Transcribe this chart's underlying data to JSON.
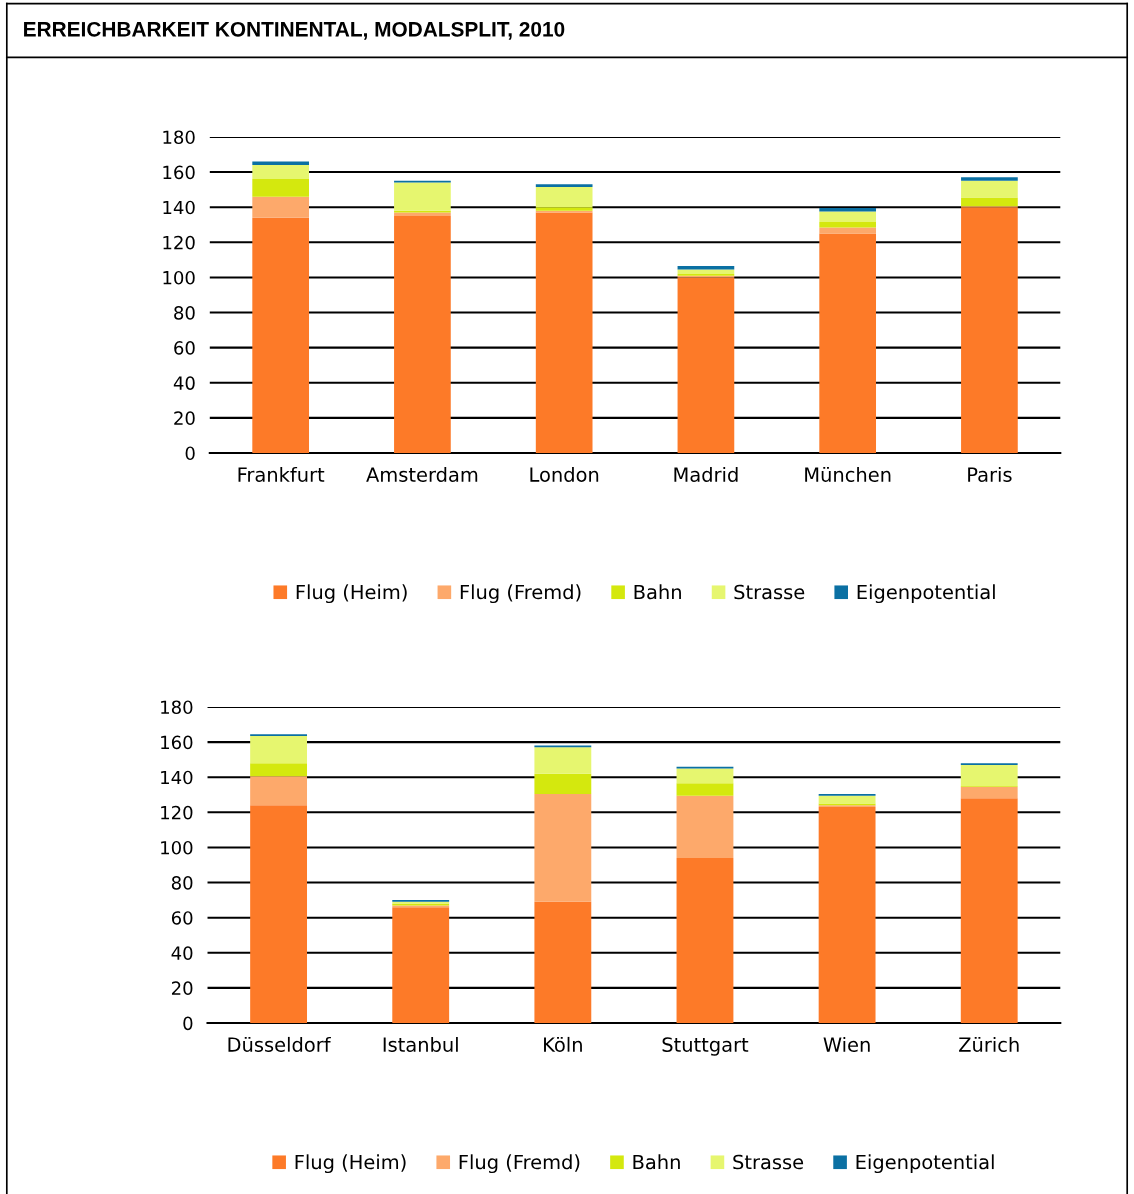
{
  "chart_data": [
    {
      "type": "bar",
      "title": "ERREICHBARKEIT KONTINENTAL, MODALSPLIT, 2010",
      "stacked": true,
      "categories": [
        "Frankfurt",
        "Amsterdam",
        "London",
        "Madrid",
        "München",
        "Paris"
      ],
      "series": [
        {
          "name": "Flug (Heim)",
          "color": "#fd7a28",
          "values": [
            134,
            135,
            137,
            100,
            125,
            140
          ]
        },
        {
          "name": "Flug (Fremd)",
          "color": "#fda96b",
          "values": [
            12,
            2,
            1,
            1,
            3.5,
            0.5
          ]
        },
        {
          "name": "Bahn",
          "color": "#d4e80e",
          "values": [
            10,
            1,
            2,
            1,
            3,
            5
          ]
        },
        {
          "name": "Strasse",
          "color": "#e6f66f",
          "values": [
            8,
            16,
            11.5,
            2.5,
            6,
            9.5
          ]
        },
        {
          "name": "Eigenpotential",
          "color": "#0b70a3",
          "values": [
            2,
            1,
            1.5,
            2,
            2,
            2
          ]
        }
      ],
      "ylim": [
        0,
        180
      ],
      "yticks": [
        0,
        20,
        40,
        60,
        80,
        100,
        120,
        140,
        160,
        180
      ],
      "grid": "y",
      "legend": "bottom"
    },
    {
      "type": "bar",
      "stacked": true,
      "categories": [
        "Düsseldorf",
        "Istanbul",
        "Köln",
        "Stuttgart",
        "Wien",
        "Zürich"
      ],
      "series": [
        {
          "name": "Flug (Heim)",
          "color": "#fd7a28",
          "values": [
            124,
            66,
            69,
            94,
            123,
            128
          ]
        },
        {
          "name": "Flug (Fremd)",
          "color": "#fda96b",
          "values": [
            16.5,
            1,
            61.5,
            35.5,
            1,
            6.5
          ]
        },
        {
          "name": "Bahn",
          "color": "#d4e80e",
          "values": [
            7.5,
            1,
            11.5,
            7,
            1,
            0.5
          ]
        },
        {
          "name": "Strasse",
          "color": "#e6f66f",
          "values": [
            15.5,
            1,
            15,
            8.5,
            4.5,
            12
          ]
        },
        {
          "name": "Eigenpotential",
          "color": "#0b70a3",
          "values": [
            1,
            1,
            1,
            1,
            1,
            1
          ]
        }
      ],
      "ylim": [
        0,
        180
      ],
      "yticks": [
        0,
        20,
        40,
        60,
        80,
        100,
        120,
        140,
        160,
        180
      ],
      "grid": "y",
      "legend": "bottom"
    }
  ]
}
